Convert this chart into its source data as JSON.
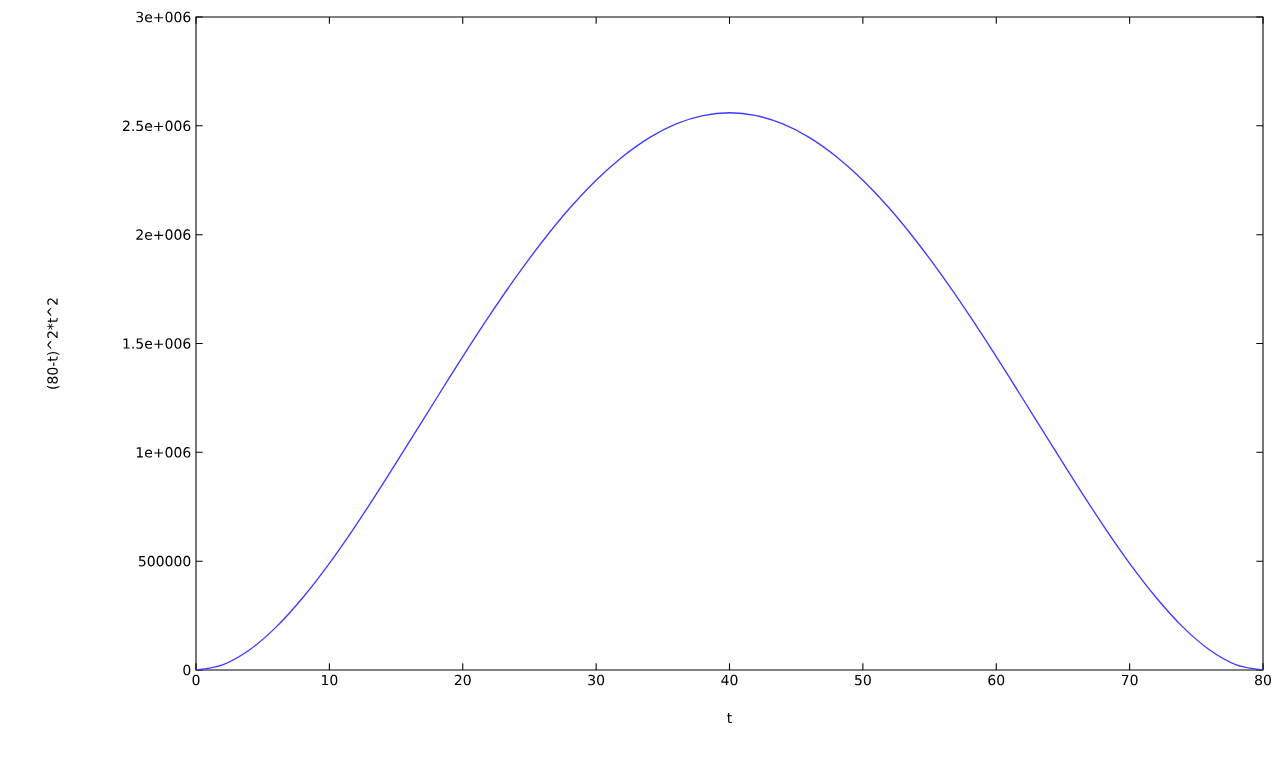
{
  "chart_data": {
    "type": "line",
    "xlabel": "t",
    "ylabel": "(80-t)^2*t^2",
    "x": [
      0,
      2,
      4,
      6,
      8,
      10,
      12,
      14,
      16,
      18,
      20,
      22,
      24,
      26,
      28,
      30,
      32,
      34,
      36,
      38,
      40,
      42,
      44,
      46,
      48,
      50,
      52,
      54,
      56,
      58,
      60,
      62,
      64,
      66,
      68,
      70,
      72,
      74,
      76,
      78,
      80
    ],
    "series": [
      {
        "color": "#3b3bff",
        "values": [
          0,
          24000,
          92000,
          197000,
          332000,
          490000,
          666000,
          854000,
          1049000,
          1245000,
          1440000,
          1628000,
          1806000,
          1971000,
          2120000,
          2250000,
          2359000,
          2446000,
          2509000,
          2547000,
          2560000,
          2547000,
          2509000,
          2446000,
          2359000,
          2250000,
          2120000,
          1971000,
          1806000,
          1628000,
          1440000,
          1245000,
          1049000,
          854000,
          666000,
          490000,
          332000,
          197000,
          92000,
          24000,
          0
        ]
      }
    ],
    "xlim": [
      0,
      80
    ],
    "ylim": [
      0,
      3000000
    ],
    "xticks": [
      0,
      10,
      20,
      30,
      40,
      50,
      60,
      70,
      80
    ],
    "yticks": [
      0,
      500000,
      {
        "value": 1000000,
        "label": "1e+006"
      },
      {
        "value": 1500000,
        "label": "1.5e+006"
      },
      {
        "value": 2000000,
        "label": "2e+006"
      },
      {
        "value": 2500000,
        "label": "2.5e+006"
      },
      {
        "value": 3000000,
        "label": "3e+006"
      }
    ],
    "marker": "none",
    "line_style": "solid"
  }
}
